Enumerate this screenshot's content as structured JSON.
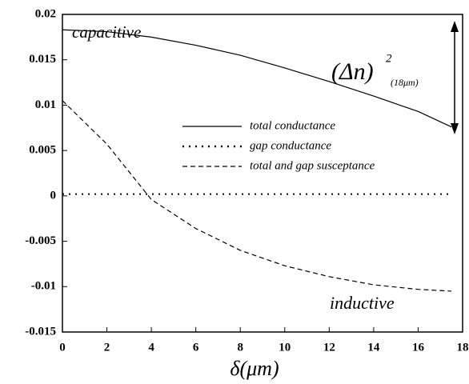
{
  "chart_data": {
    "type": "line",
    "x_label": "δ(μm)",
    "x": [
      0,
      2,
      4,
      6,
      8,
      10,
      12,
      14,
      16,
      17.5
    ],
    "series": [
      {
        "name": "total conductance",
        "color": "#000000",
        "dash": "solid",
        "values": [
          0.0183,
          0.0181,
          0.0175,
          0.0166,
          0.0155,
          0.0141,
          0.0126,
          0.011,
          0.0093,
          0.0076
        ]
      },
      {
        "name": "gap conductance",
        "color": "#000000",
        "dash": "dotted",
        "values": [
          0.0002,
          0.0002,
          0.0002,
          0.0002,
          0.0002,
          0.0002,
          0.0002,
          0.0002,
          0.0002,
          0.0002
        ]
      },
      {
        "name": "total and gap susceptance",
        "color": "#000000",
        "dash": "dashed",
        "values": [
          0.0105,
          0.0057,
          -0.0004,
          -0.0036,
          -0.006,
          -0.0077,
          -0.0089,
          -0.0098,
          -0.0103,
          -0.0105
        ]
      }
    ],
    "xlim": [
      0,
      18
    ],
    "xticks": [
      0,
      2,
      4,
      6,
      8,
      10,
      12,
      14,
      16,
      18
    ],
    "ylim": [
      -0.015,
      0.02
    ],
    "yticks": [
      -0.015,
      -0.01,
      -0.005,
      0,
      0.005,
      0.01,
      0.015,
      0.02
    ],
    "annotations": {
      "capacitive": "capacitive",
      "inductive": "inductive",
      "delta_base": "(Δn)",
      "delta_sup": "2",
      "delta_sub": "(18μm)"
    }
  }
}
